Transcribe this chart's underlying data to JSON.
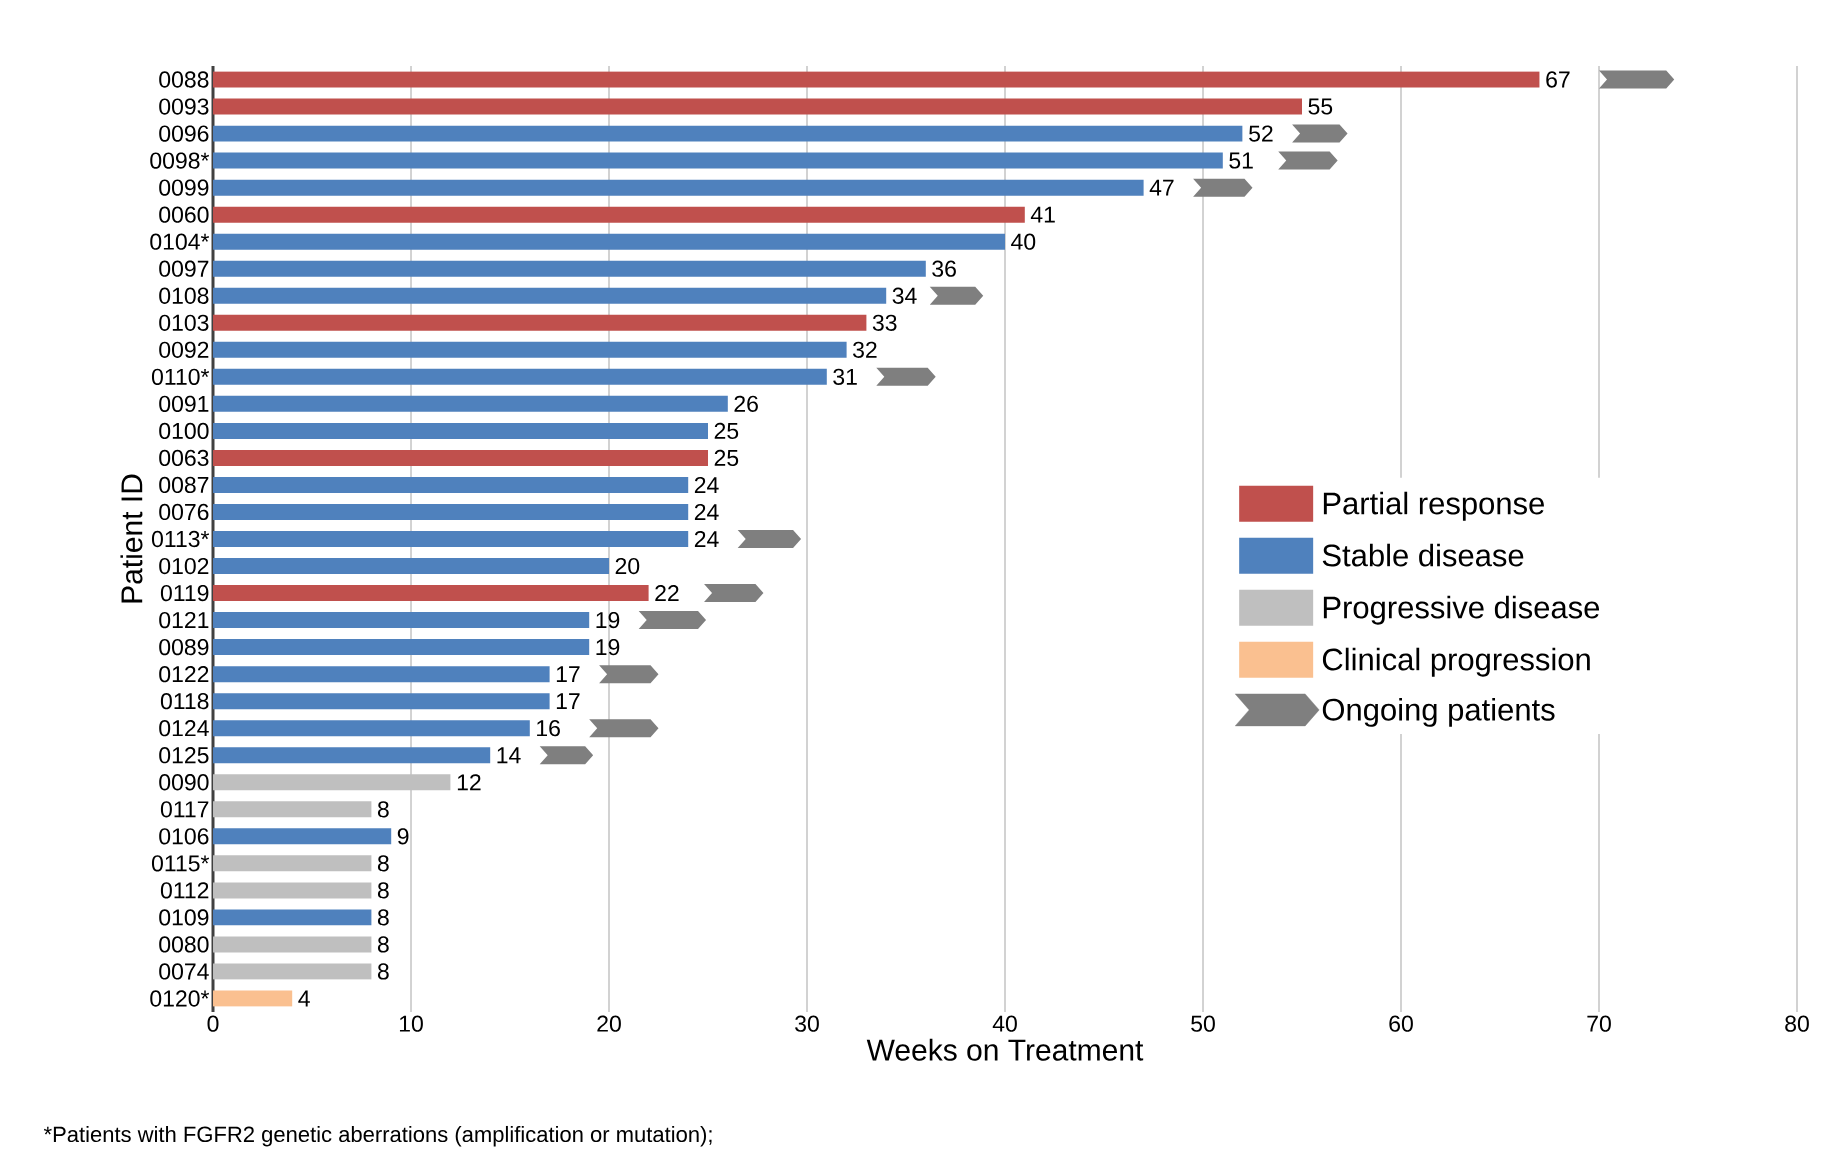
{
  "chart_data": {
    "type": "bar",
    "orientation": "horizontal",
    "xlabel": "Weeks on Treatment",
    "ylabel": "Patient ID",
    "categories": [
      "0088",
      "0093",
      "0096",
      "0098*",
      "0099",
      "0060",
      "0104*",
      "0097",
      "0108",
      "0103",
      "0092",
      "0110*",
      "0091",
      "0100",
      "0063",
      "0087",
      "0076",
      "0113*",
      "0102",
      "0119",
      "0121",
      "0089",
      "0122",
      "0118",
      "0124",
      "0125",
      "0090",
      "0117",
      "0106",
      "0115*",
      "0112",
      "0109",
      "0080",
      "0074",
      "0120*"
    ],
    "series": [
      {
        "name": "Partial response",
        "color": "#c0504d",
        "values": [
          67,
          55,
          null,
          null,
          null,
          41,
          null,
          null,
          null,
          33,
          null,
          null,
          null,
          null,
          25,
          null,
          null,
          null,
          null,
          22,
          null,
          null,
          null,
          null,
          null,
          null,
          null,
          null,
          null,
          null,
          null,
          null,
          null,
          null,
          null
        ],
        "value_labels": [
          "67",
          "55",
          null,
          null,
          null,
          "41",
          null,
          null,
          null,
          "33",
          null,
          null,
          null,
          null,
          "25",
          null,
          null,
          null,
          null,
          "22",
          null,
          null,
          null,
          null,
          null,
          null,
          null,
          null,
          null,
          null,
          null,
          null,
          null,
          null,
          null
        ]
      },
      {
        "name": "Stable disease",
        "color": "#4f81bd",
        "values": [
          null,
          null,
          52,
          51,
          47,
          null,
          40,
          36,
          34,
          null,
          32,
          31,
          26,
          25,
          null,
          24,
          24,
          24,
          20,
          null,
          19,
          19,
          17,
          17,
          16,
          14,
          null,
          null,
          9,
          null,
          null,
          8,
          null,
          null,
          null
        ],
        "value_labels": [
          null,
          null,
          "52",
          "51",
          "47",
          null,
          "40",
          "36",
          "34",
          null,
          "32",
          "31",
          "26",
          "25",
          null,
          "24",
          "24",
          "24",
          "20",
          null,
          "19",
          "19",
          "17",
          "17",
          "16",
          "14",
          null,
          null,
          "9",
          null,
          null,
          "8",
          null,
          null,
          null
        ]
      },
      {
        "name": "Progressive disease",
        "color": "#bfbfbf",
        "values": [
          null,
          null,
          null,
          null,
          null,
          null,
          null,
          null,
          null,
          null,
          null,
          null,
          null,
          null,
          null,
          null,
          null,
          null,
          null,
          null,
          null,
          null,
          null,
          null,
          null,
          null,
          12,
          8,
          null,
          8,
          8,
          null,
          8,
          8,
          null
        ],
        "value_labels": [
          null,
          null,
          null,
          null,
          null,
          null,
          null,
          null,
          null,
          null,
          null,
          null,
          null,
          null,
          null,
          null,
          null,
          null,
          null,
          null,
          null,
          null,
          null,
          null,
          null,
          null,
          "12",
          "8",
          null,
          "8",
          "8",
          null,
          "8",
          "8",
          null
        ]
      },
      {
        "name": "Clinical progression",
        "color": "#fac090",
        "values": [
          null,
          null,
          null,
          null,
          null,
          null,
          null,
          null,
          null,
          null,
          null,
          null,
          null,
          null,
          null,
          null,
          null,
          null,
          null,
          null,
          null,
          null,
          null,
          null,
          null,
          null,
          null,
          null,
          null,
          null,
          null,
          null,
          null,
          null,
          4
        ],
        "value_labels": [
          null,
          null,
          null,
          null,
          null,
          null,
          null,
          null,
          null,
          null,
          null,
          null,
          null,
          null,
          null,
          null,
          null,
          null,
          null,
          null,
          null,
          null,
          null,
          null,
          null,
          null,
          null,
          null,
          null,
          null,
          null,
          null,
          null,
          null,
          "4"
        ]
      },
      {
        "name": "Ongoing patients",
        "color": "#7f7f7f",
        "base": [
          70,
          null,
          54.5,
          53.8,
          49.5,
          null,
          null,
          null,
          36.2,
          null,
          null,
          33.5,
          null,
          null,
          null,
          null,
          null,
          26.5,
          null,
          24.8,
          21.5,
          null,
          19.5,
          null,
          19,
          16.5,
          null,
          null,
          null,
          null,
          null,
          null,
          null,
          null,
          null
        ],
        "values": [
          3.8,
          null,
          2.8,
          3,
          3,
          null,
          null,
          null,
          2.7,
          null,
          null,
          3,
          null,
          null,
          null,
          null,
          null,
          3.2,
          null,
          3,
          3.4,
          null,
          3,
          null,
          3.5,
          2.7,
          null,
          null,
          null,
          null,
          null,
          null,
          null,
          null,
          null
        ]
      }
    ],
    "xlim": [
      0,
      80
    ],
    "xticks": [
      0,
      10,
      20,
      30,
      40,
      50,
      60,
      70,
      80
    ],
    "grid": "x",
    "legend": "right",
    "annotations": [
      "*Patients with FGFR2 genetic aberrations (amplification or mutation);"
    ]
  }
}
